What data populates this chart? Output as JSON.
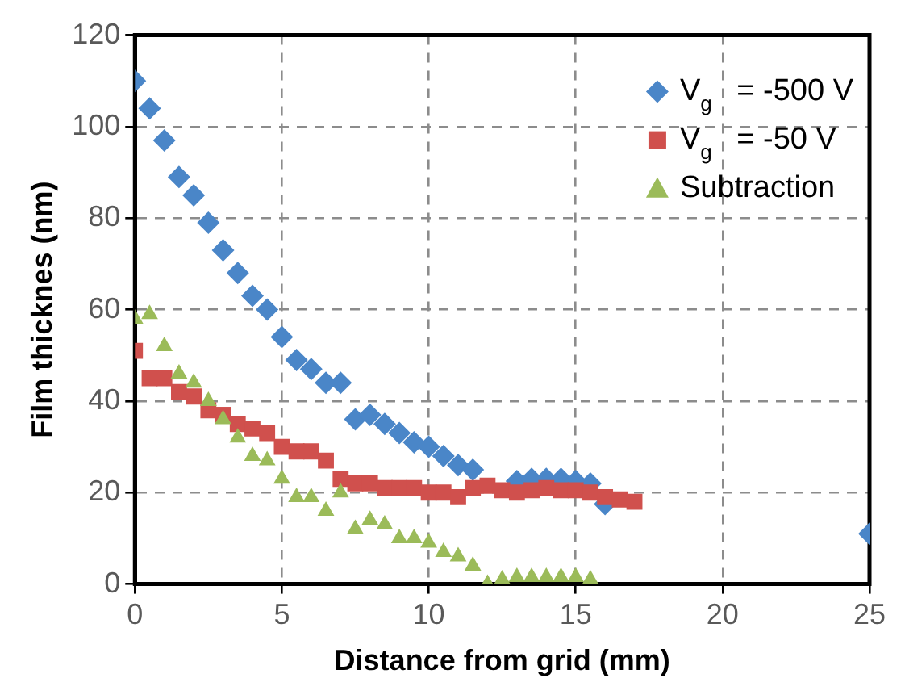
{
  "chart_data": {
    "type": "scatter",
    "xlabel": "Distance from grid (mm)",
    "ylabel": "Film thicknes (nm)",
    "xlim": [
      0,
      25
    ],
    "xticks": [
      0,
      5,
      10,
      15,
      20,
      25
    ],
    "ylim": [
      0,
      120
    ],
    "yticks": [
      0,
      20,
      40,
      60,
      80,
      100,
      120
    ],
    "grid": true,
    "legend": "top right",
    "series": [
      {
        "name": "V$_{g}$ = -500 V",
        "color": "#4a86c8",
        "marker": "diamond",
        "x": [
          0,
          0.5,
          1,
          1.5,
          2,
          2.5,
          3,
          3.5,
          4,
          4.5,
          5,
          5.5,
          6,
          6.5,
          7,
          7.5,
          8,
          8.5,
          9,
          9.5,
          10,
          10.5,
          11,
          11.5,
          12,
          12.5,
          13,
          13.5,
          14,
          14.5,
          15,
          15.5,
          16,
          25
        ],
        "values": [
          110,
          104,
          97,
          89,
          85,
          79,
          73,
          68,
          63,
          60,
          54,
          49,
          47,
          44,
          44,
          36,
          37,
          35,
          33,
          31,
          30,
          28,
          26,
          25,
          null,
          null,
          22.5,
          23,
          23,
          23,
          22.5,
          22,
          17.5,
          11
        ]
      },
      {
        "name": "V$_{g}$ = -50 V",
        "color": "#d0504d",
        "marker": "square",
        "x": [
          0,
          0.5,
          1,
          1.5,
          2,
          2.5,
          3,
          3.5,
          4,
          4.5,
          5,
          5.5,
          6,
          6.5,
          7,
          7.5,
          8,
          8.5,
          9,
          9.5,
          10,
          10.5,
          11,
          11.5,
          12,
          12.5,
          13,
          13.5,
          14,
          14.5,
          15,
          15.5,
          16,
          16.5,
          17
        ],
        "values": [
          51,
          45,
          45,
          42,
          41,
          38,
          37,
          35,
          34,
          33,
          30,
          29,
          29,
          27,
          23,
          22,
          22,
          21,
          21,
          21,
          20,
          20,
          19,
          21,
          21.5,
          20.5,
          20,
          20.5,
          21,
          20.5,
          20.5,
          20,
          19,
          18.5,
          18
        ]
      },
      {
        "name": "Subtraction",
        "color": "#9bbb59",
        "marker": "triangle",
        "x": [
          0,
          0.5,
          1,
          1.5,
          2,
          2.5,
          3,
          3.5,
          4,
          4.5,
          5,
          5.5,
          6,
          6.5,
          7,
          7.5,
          8,
          8.5,
          9,
          9.5,
          10,
          10.5,
          11,
          11.5,
          12,
          12.5,
          13,
          13.5,
          14,
          14.5,
          15,
          15.5
        ],
        "values": [
          58,
          59,
          52,
          46,
          44,
          40,
          36,
          32,
          28,
          27,
          23,
          19,
          19,
          16,
          20,
          12,
          14,
          13,
          10,
          10,
          9,
          7,
          6,
          4,
          0,
          1,
          1.5,
          1.5,
          1.5,
          1.5,
          1.5,
          1
        ]
      }
    ]
  }
}
